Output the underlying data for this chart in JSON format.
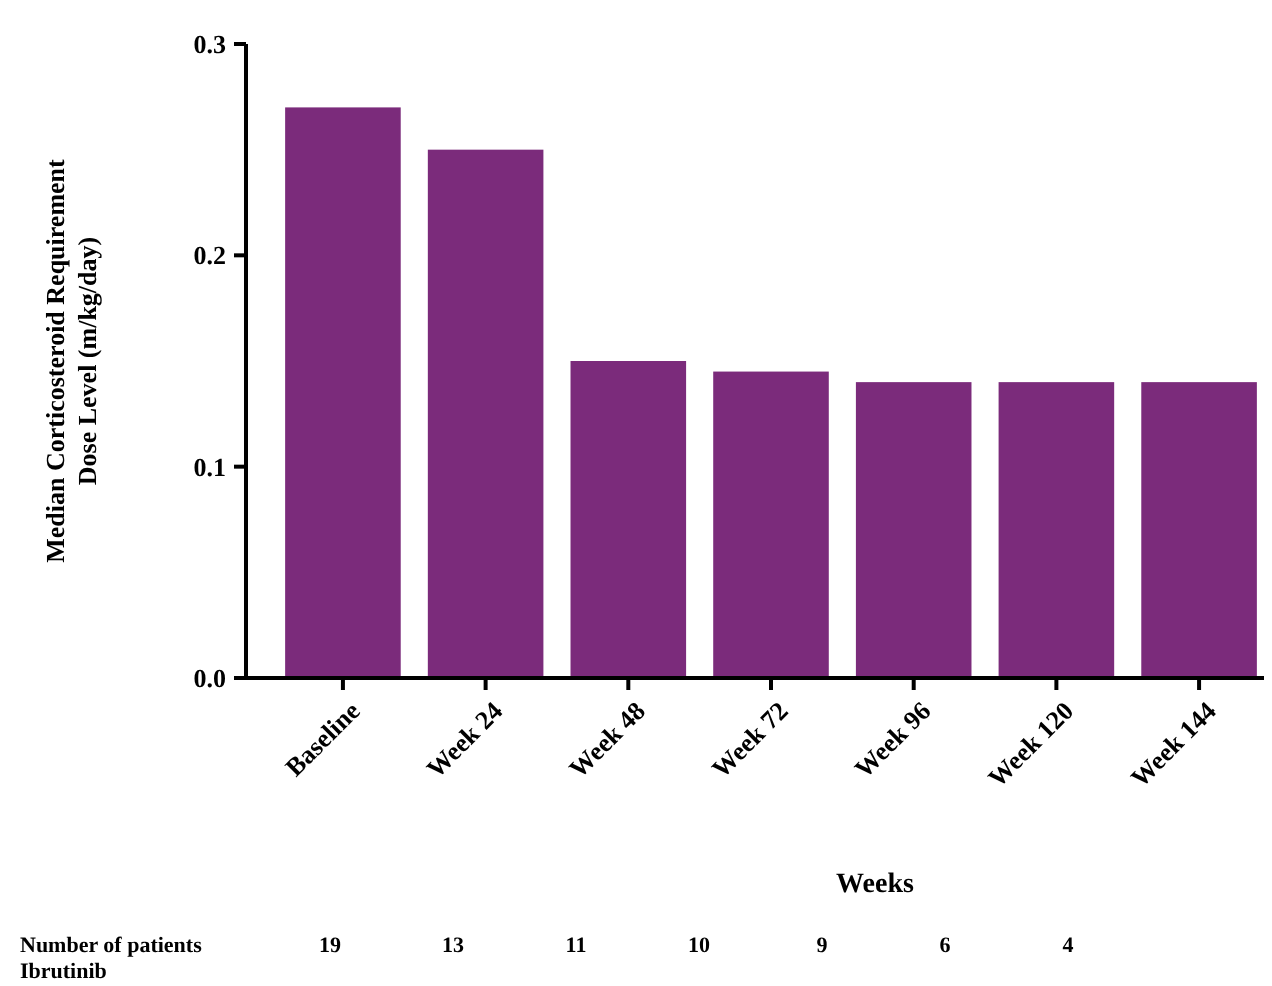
{
  "chart_data": {
    "type": "bar",
    "xlabel": "Weeks",
    "ylabel": "Median Corticosteroid Requirement Dose Level (m/kg/day)",
    "categories": [
      "Baseline",
      "Week 24",
      "Week 48",
      "Week 72",
      "Week 96",
      "Week 120",
      "Week 144"
    ],
    "values": [
      0.27,
      0.25,
      0.15,
      0.145,
      0.14,
      0.14,
      0.14
    ],
    "color": "#7b2b7b",
    "ylim": [
      0,
      0.3
    ],
    "yticks": [
      {
        "value": 0,
        "label": "0.0"
      },
      {
        "value": 0.1,
        "label": "0.1"
      },
      {
        "value": 0.2,
        "label": "0.2"
      },
      {
        "value": 0.3,
        "label": "0.3"
      }
    ],
    "grid": false,
    "annotations": [
      "Number of patients\nIbrutinib",
      "19",
      "13",
      "11",
      "10",
      "9",
      "6",
      "4"
    ]
  }
}
